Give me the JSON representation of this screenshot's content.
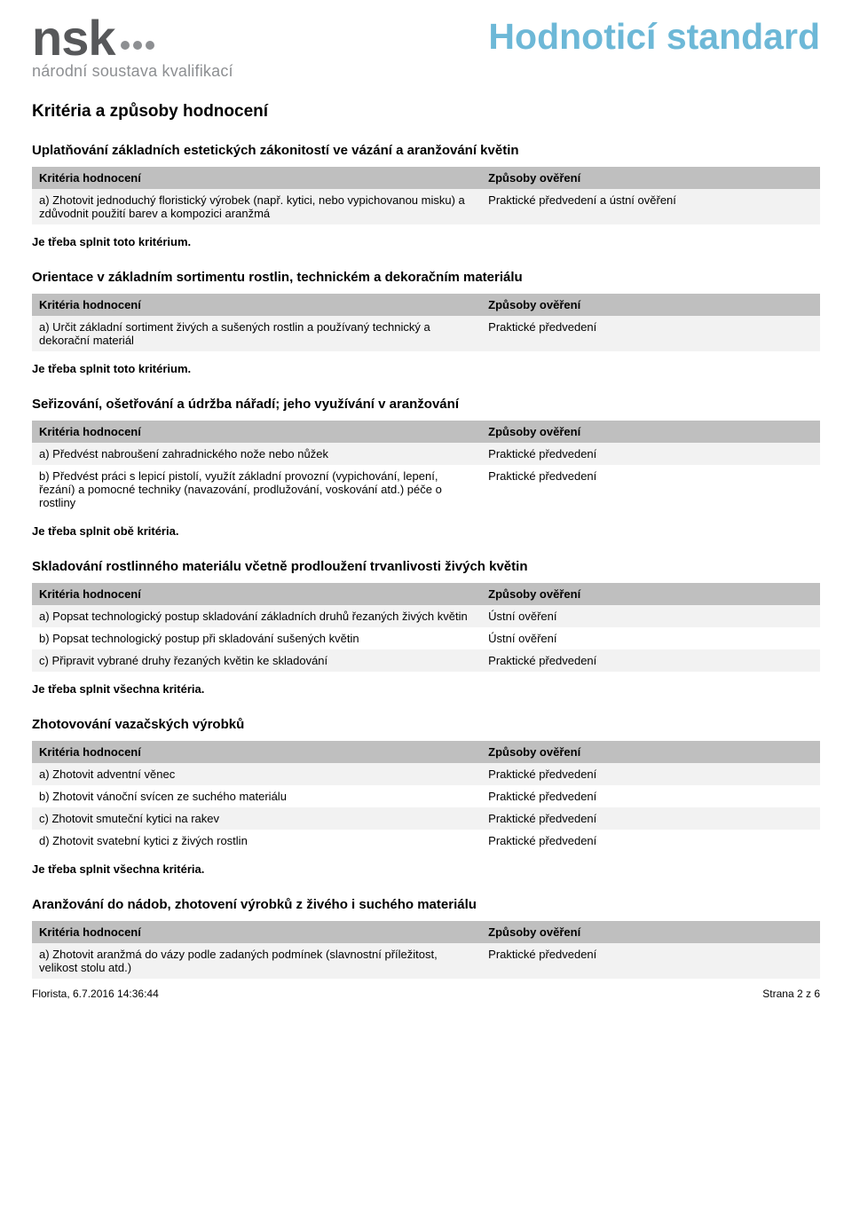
{
  "logo": {
    "text": "nsk",
    "subtitle": "národní soustava kvalifikací"
  },
  "page_title": "Hodnoticí standard",
  "main_heading": "Kritéria a způsoby hodnocení",
  "table_headers": {
    "left": "Kritéria hodnocení",
    "right": "Způsoby ověření"
  },
  "sections": [
    {
      "title": "Uplatňování základních estetických zákonitostí ve vázání a aranžování květin",
      "rows": [
        {
          "left": "a) Zhotovit jednoduchý floristický výrobek (např. kytici, nebo vypichovanou misku) a zdůvodnit použití barev a kompozici aranžmá",
          "right": "Praktické předvedení a ústní ověření"
        }
      ],
      "note": "Je třeba splnit toto kritérium."
    },
    {
      "title": "Orientace v základním sortimentu rostlin, technickém a dekoračním materiálu",
      "rows": [
        {
          "left": "a) Určit základní sortiment živých a sušených rostlin a používaný technický a dekorační materiál",
          "right": "Praktické předvedení"
        }
      ],
      "note": "Je třeba splnit toto kritérium."
    },
    {
      "title": "Seřizování, ošetřování a údržba nářadí; jeho využívání v aranžování",
      "rows": [
        {
          "left": "a) Předvést nabroušení zahradnického nože nebo nůžek",
          "right": "Praktické předvedení"
        },
        {
          "left": "b) Předvést práci s lepicí pistolí, využít základní provozní (vypichování, lepení, řezání) a pomocné techniky (navazování, prodlužování, voskování atd.) péče o rostliny",
          "right": "Praktické předvedení"
        }
      ],
      "note": "Je třeba splnit obě kritéria."
    },
    {
      "title": "Skladování rostlinného materiálu včetně prodloužení trvanlivosti živých květin",
      "rows": [
        {
          "left": "a) Popsat technologický postup skladování základních druhů řezaných živých květin",
          "right": "Ústní ověření"
        },
        {
          "left": "b) Popsat technologický postup při skladování sušených květin",
          "right": "Ústní ověření"
        },
        {
          "left": "c) Připravit vybrané druhy řezaných květin ke skladování",
          "right": "Praktické předvedení"
        }
      ],
      "note": "Je třeba splnit všechna kritéria."
    },
    {
      "title": "Zhotovování vazačských výrobků",
      "rows": [
        {
          "left": "a) Zhotovit adventní věnec",
          "right": "Praktické předvedení"
        },
        {
          "left": "b) Zhotovit vánoční svícen ze suchého materiálu",
          "right": "Praktické předvedení"
        },
        {
          "left": "c) Zhotovit smuteční kytici na rakev",
          "right": "Praktické předvedení"
        },
        {
          "left": "d) Zhotovit svatební kytici z živých rostlin",
          "right": "Praktické předvedení"
        }
      ],
      "note": "Je třeba splnit všechna kritéria."
    },
    {
      "title": "Aranžování do nádob, zhotovení výrobků z živého i suchého materiálu",
      "rows": [
        {
          "left": "a) Zhotovit aranžmá do vázy podle zadaných podmínek (slavnostní příležitost, velikost stolu atd.)",
          "right": "Praktické předvedení"
        }
      ],
      "note": null
    }
  ],
  "footer": {
    "left": "Florista,  6.7.2016 14:36:44",
    "right": "Strana 2 z 6"
  }
}
